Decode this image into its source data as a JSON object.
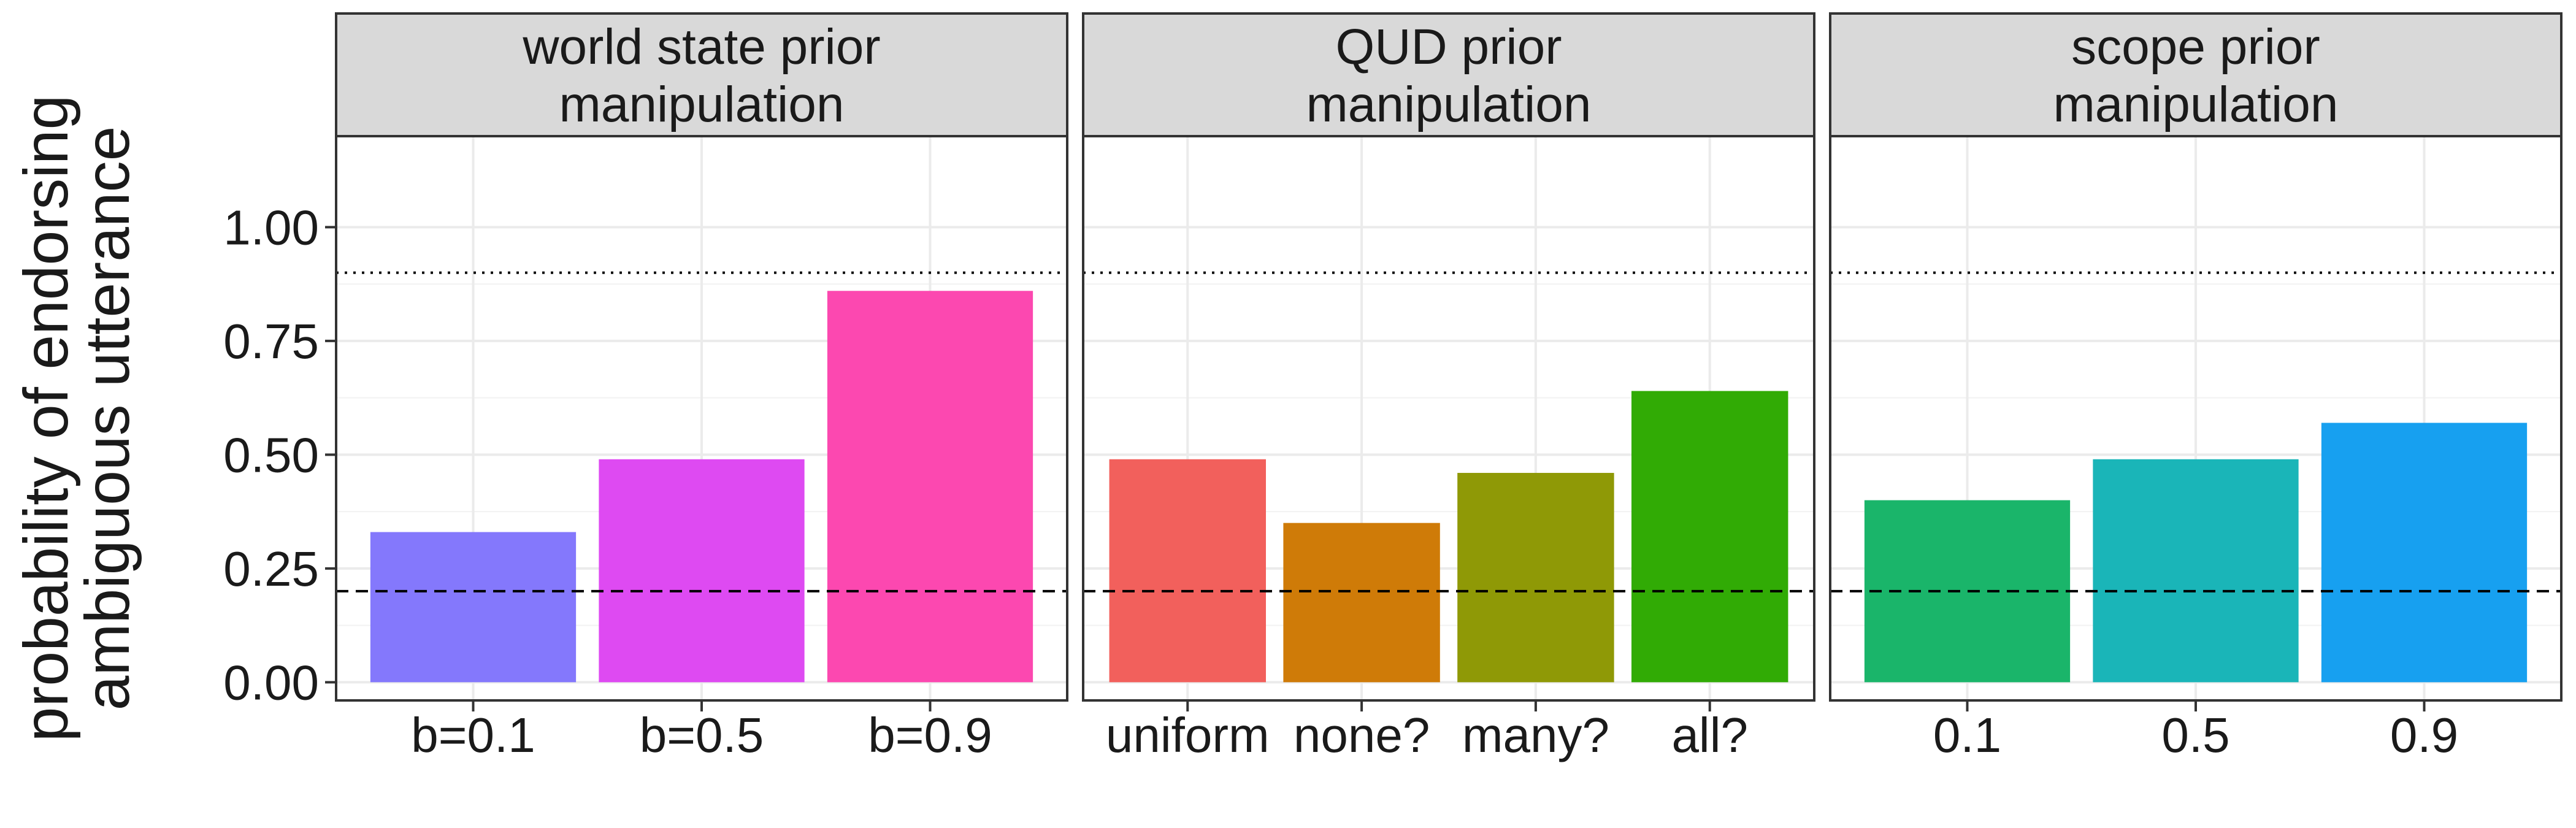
{
  "chart_data": {
    "type": "bar",
    "ylabel": [
      "probability of endorsing",
      "ambiguous utterance"
    ],
    "ylim": [
      -0.04,
      1.2
    ],
    "yticks": [
      0.0,
      0.25,
      0.5,
      0.75,
      1.0
    ],
    "ytick_labels": [
      "0.00",
      "0.25",
      "0.50",
      "0.75",
      "1.00"
    ],
    "grid": true,
    "reference_lines": [
      {
        "y": 0.9,
        "style": "dotted",
        "color": "#000000"
      },
      {
        "y": 0.2,
        "style": "dashed",
        "color": "#000000"
      }
    ],
    "facets": [
      {
        "title": [
          "world state prior",
          "manipulation"
        ],
        "categories": [
          "b=0.1",
          "b=0.5",
          "b=0.9"
        ],
        "values": [
          0.33,
          0.49,
          0.86
        ],
        "colors": [
          "#8478FC",
          "#DE4AF2",
          "#FC48B0"
        ]
      },
      {
        "title": [
          "QUD prior",
          "manipulation"
        ],
        "categories": [
          "uniform",
          "none?",
          "many?",
          "all?"
        ],
        "values": [
          0.49,
          0.35,
          0.46,
          0.64
        ],
        "colors": [
          "#F2605C",
          "#CF7B08",
          "#8F9906",
          "#31AB05"
        ]
      },
      {
        "title": [
          "scope prior",
          "manipulation"
        ],
        "categories": [
          "0.1",
          "0.5",
          "0.9"
        ],
        "values": [
          0.4,
          0.49,
          0.57
        ],
        "colors": [
          "#1AB56A",
          "#1AB5B8",
          "#17A0F0"
        ]
      }
    ]
  }
}
